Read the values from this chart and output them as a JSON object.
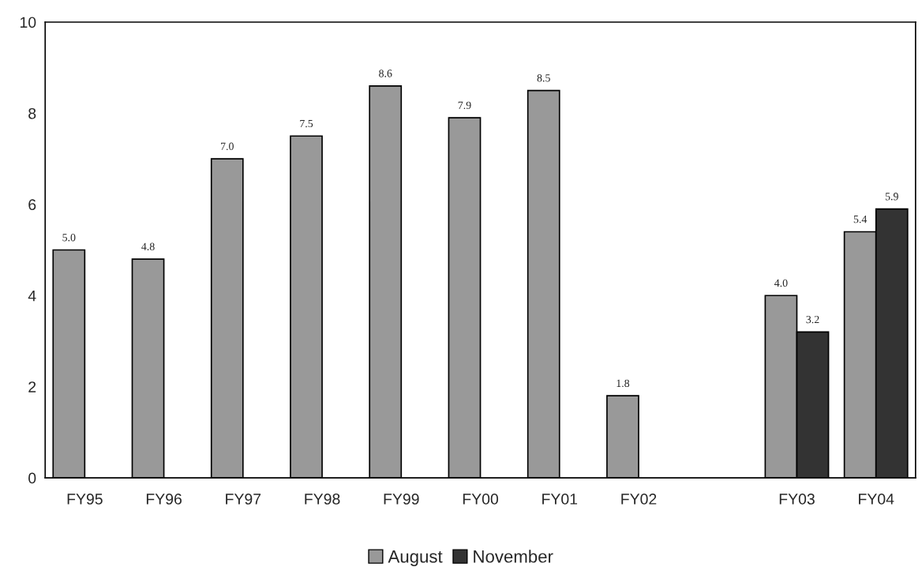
{
  "chart_data": {
    "type": "bar",
    "categories": [
      "FY95",
      "FY96",
      "FY97",
      "FY98",
      "FY99",
      "FY00",
      "FY01",
      "FY02",
      null,
      "FY03",
      "FY04"
    ],
    "series": [
      {
        "name": "August",
        "color": "#999999",
        "values": [
          5.0,
          4.8,
          7.0,
          7.5,
          8.6,
          7.9,
          8.5,
          1.8,
          null,
          4.0,
          5.4
        ],
        "value_labels": [
          "5.0",
          "4.8",
          "7.0",
          "7.5",
          "8.6",
          "7.9",
          "8.5",
          "1.8",
          null,
          "4.0",
          "5.4"
        ]
      },
      {
        "name": "November",
        "color": "#333333",
        "values": [
          null,
          null,
          null,
          null,
          null,
          null,
          null,
          null,
          null,
          3.2,
          5.9
        ],
        "value_labels": [
          null,
          null,
          null,
          null,
          null,
          null,
          null,
          null,
          null,
          "3.2",
          "5.9"
        ]
      }
    ],
    "ylim": [
      0,
      10
    ],
    "yticks": [
      0,
      2,
      4,
      6,
      8,
      10
    ],
    "grid": false,
    "legend": "bottom"
  }
}
